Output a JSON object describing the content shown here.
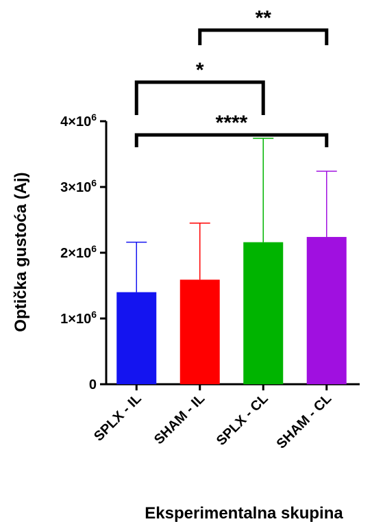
{
  "chart_data": {
    "type": "bar",
    "title": "",
    "xlabel": "Eksperimentalna skupina",
    "ylabel": "Optička gustoća (Aj)",
    "ylim": [
      0,
      4000000
    ],
    "yticks": [
      {
        "value": 0,
        "label": "0"
      },
      {
        "value": 1000000,
        "label": "1×10",
        "exp": "6"
      },
      {
        "value": 2000000,
        "label": "2×10",
        "exp": "6"
      },
      {
        "value": 3000000,
        "label": "3×10",
        "exp": "6"
      },
      {
        "value": 4000000,
        "label": "4×10",
        "exp": "6"
      }
    ],
    "categories": [
      "SPLX - IL",
      "SHAM - IL",
      "SPLX - CL",
      "SHAM - CL"
    ],
    "values": [
      1400000,
      1590000,
      2160000,
      2240000
    ],
    "error_upper": [
      2160000,
      2450000,
      3740000,
      3240000
    ],
    "colors": [
      "#1414f0",
      "#ff0000",
      "#00b400",
      "#a010e0"
    ],
    "significance": [
      {
        "from": 1,
        "to": 3,
        "label": "**"
      },
      {
        "from": 0,
        "to": 2,
        "label": "*"
      },
      {
        "from": 0,
        "to": 3,
        "label": "****"
      }
    ],
    "grid": false,
    "legend": "none"
  }
}
